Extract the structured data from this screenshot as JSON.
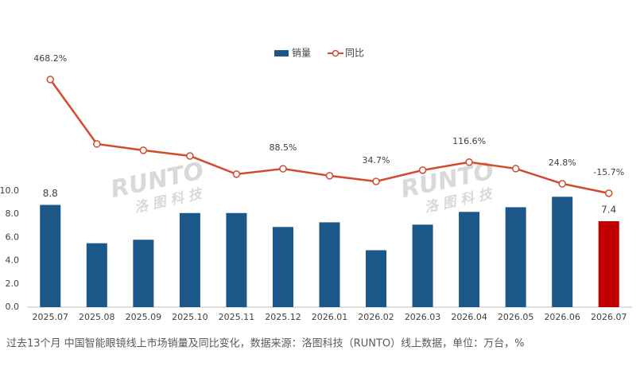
{
  "chart_data": {
    "type": "bar-line",
    "note": "过去13个月 中国智能眼镜线上市场销量及同比变化，数据来源：洛图科技（RUNTO）线上数据，单位：万台，%",
    "watermarks": [
      {
        "brand": "RUNTO",
        "name": "洛图科技"
      },
      {
        "brand": "RUNTO",
        "name": "洛图科技"
      }
    ],
    "categories": [
      "2025.07",
      "2025.08",
      "2025.09",
      "2025.10",
      "2025.11",
      "2025.12",
      "2026.01",
      "2026.02",
      "2026.03",
      "2026.04",
      "2026.05",
      "2026.06",
      "2026.07"
    ],
    "ylim": [
      0,
      10
    ],
    "yticks": [
      {
        "value": 0,
        "label": "0.0"
      },
      {
        "value": 2,
        "label": "2.0"
      },
      {
        "value": 4,
        "label": "4.0"
      },
      {
        "value": 6,
        "label": "6.0"
      },
      {
        "value": 8,
        "label": "8.0"
      },
      {
        "value": 10,
        "label": "10.0"
      }
    ],
    "y2lim": [
      -500,
      620
    ],
    "series": [
      {
        "name": "销量",
        "type": "bar",
        "color": "#1b5788",
        "highlight_color": "#c00000",
        "highlight_index": 12,
        "values": [
          8.8,
          5.5,
          5.8,
          8.1,
          8.1,
          6.9,
          7.3,
          4.9,
          7.1,
          8.2,
          8.6,
          9.5,
          7.4
        ],
        "value_labels": [
          "8.8",
          null,
          null,
          null,
          null,
          null,
          null,
          null,
          null,
          null,
          null,
          null,
          "7.4"
        ]
      },
      {
        "name": "同比",
        "type": "line",
        "axis": "y2",
        "color": "#d44a2e",
        "values": [
          468.2,
          194,
          167,
          143,
          65.5,
          88.5,
          58.8,
          34.7,
          82.4,
          116.6,
          89,
          24.8,
          -15.7
        ],
        "value_labels": [
          "468.2%",
          null,
          null,
          null,
          null,
          "88.5%",
          null,
          "34.7%",
          null,
          "116.6%",
          null,
          "24.8%",
          "-15.7%"
        ]
      }
    ]
  }
}
